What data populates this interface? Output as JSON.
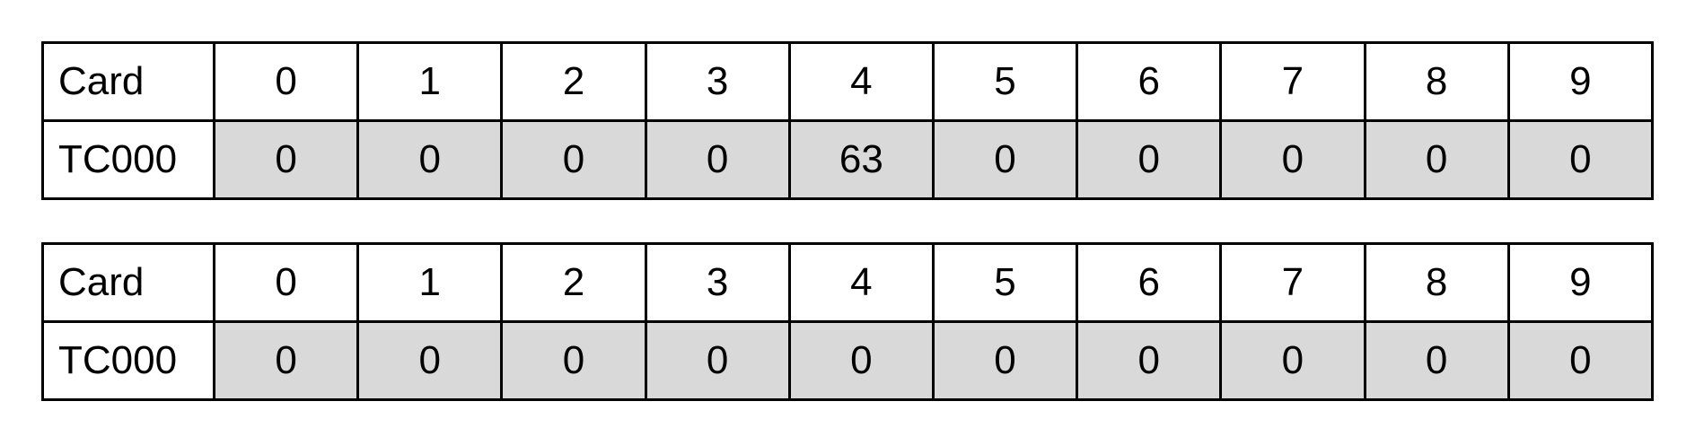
{
  "tables": [
    {
      "header_label": "Card",
      "columns": [
        "0",
        "1",
        "2",
        "3",
        "4",
        "5",
        "6",
        "7",
        "8",
        "9"
      ],
      "row_label": "TC000",
      "values": [
        "0",
        "0",
        "0",
        "0",
        "63",
        "0",
        "0",
        "0",
        "0",
        "0"
      ]
    },
    {
      "header_label": "Card",
      "columns": [
        "0",
        "1",
        "2",
        "3",
        "4",
        "5",
        "6",
        "7",
        "8",
        "9"
      ],
      "row_label": "TC000",
      "values": [
        "0",
        "0",
        "0",
        "0",
        "0",
        "0",
        "0",
        "0",
        "0",
        "0"
      ]
    }
  ],
  "colors": {
    "value_cell_bg": "#d9d9d9",
    "border": "#000000"
  }
}
